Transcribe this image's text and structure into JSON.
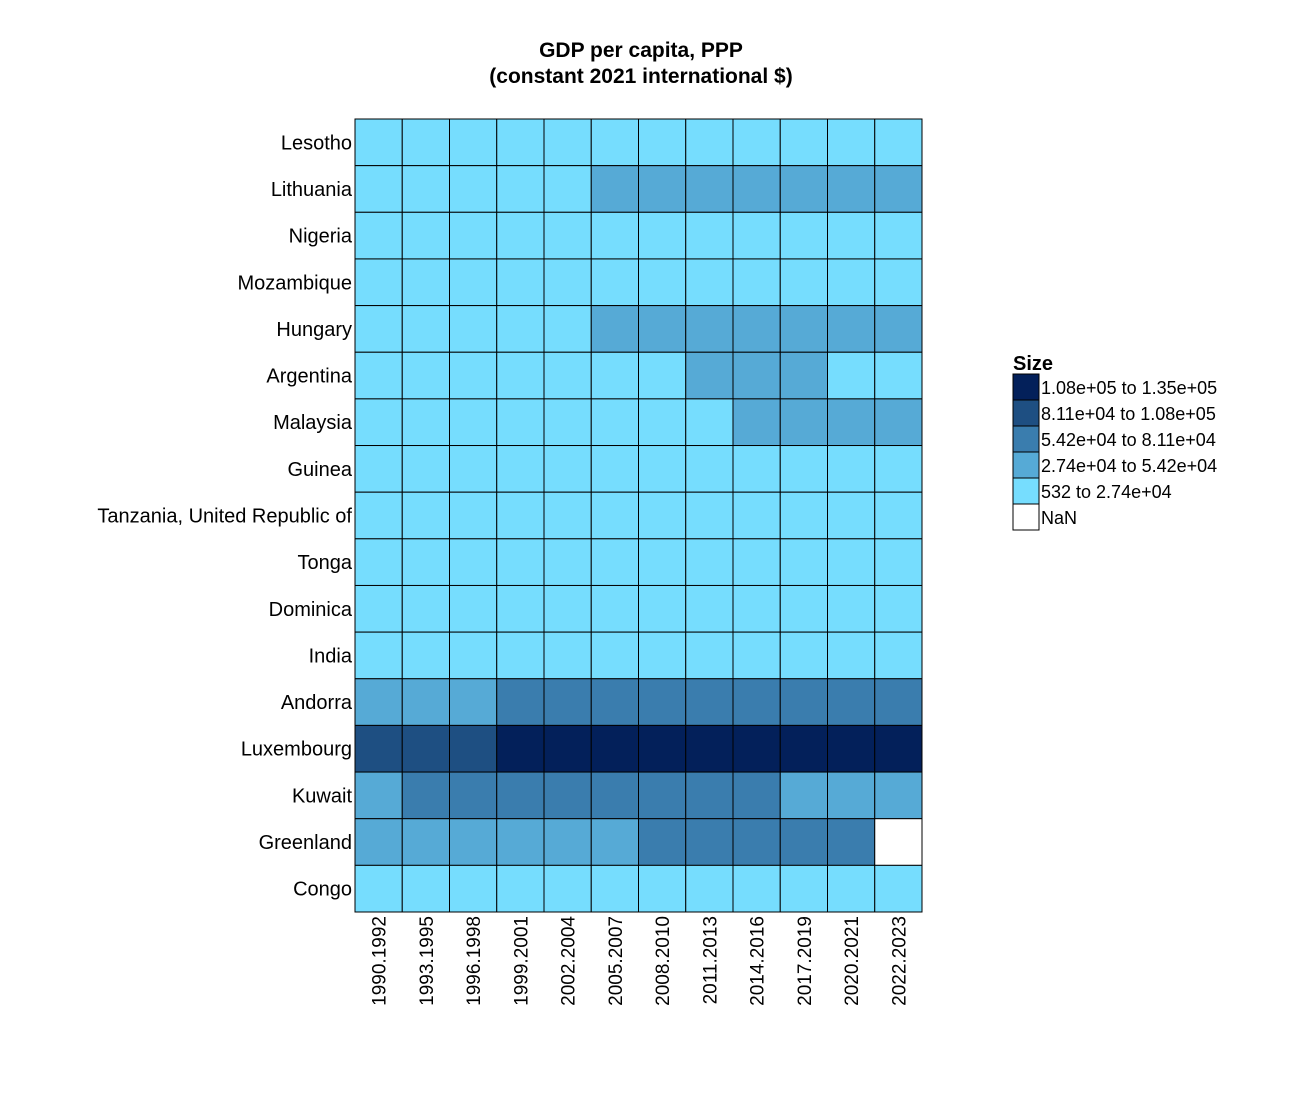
{
  "chart_data": {
    "type": "heatmap",
    "title_line1": "GDP per capita, PPP",
    "title_line2": "(constant 2021 international $)",
    "xlabel": "",
    "ylabel": "",
    "columns": [
      "1990.1992",
      "1993.1995",
      "1996.1998",
      "1999.2001",
      "2002.2004",
      "2005.2007",
      "2008.2010",
      "2011.2013",
      "2014.2016",
      "2017.2019",
      "2020.2021",
      "2022.2023"
    ],
    "rows": [
      "Lesotho",
      "Lithuania",
      "Nigeria",
      "Mozambique",
      "Hungary",
      "Argentina",
      "Malaysia",
      "Guinea",
      "Tanzania, United Republic of",
      "Tonga",
      "Dominica",
      "India",
      "Andorra",
      "Luxembourg",
      "Kuwait",
      "Greenland",
      "Congo"
    ],
    "bins": [
      [
        0,
        0,
        0,
        0,
        0,
        0,
        0,
        0,
        0,
        0,
        0,
        0
      ],
      [
        0,
        0,
        0,
        0,
        0,
        1,
        1,
        1,
        1,
        1,
        1,
        1
      ],
      [
        0,
        0,
        0,
        0,
        0,
        0,
        0,
        0,
        0,
        0,
        0,
        0
      ],
      [
        0,
        0,
        0,
        0,
        0,
        0,
        0,
        0,
        0,
        0,
        0,
        0
      ],
      [
        0,
        0,
        0,
        0,
        0,
        1,
        1,
        1,
        1,
        1,
        1,
        1
      ],
      [
        0,
        0,
        0,
        0,
        0,
        0,
        0,
        1,
        1,
        1,
        0,
        0
      ],
      [
        0,
        0,
        0,
        0,
        0,
        0,
        0,
        0,
        1,
        1,
        1,
        1
      ],
      [
        0,
        0,
        0,
        0,
        0,
        0,
        0,
        0,
        0,
        0,
        0,
        0
      ],
      [
        0,
        0,
        0,
        0,
        0,
        0,
        0,
        0,
        0,
        0,
        0,
        0
      ],
      [
        0,
        0,
        0,
        0,
        0,
        0,
        0,
        0,
        0,
        0,
        0,
        0
      ],
      [
        0,
        0,
        0,
        0,
        0,
        0,
        0,
        0,
        0,
        0,
        0,
        0
      ],
      [
        0,
        0,
        0,
        0,
        0,
        0,
        0,
        0,
        0,
        0,
        0,
        0
      ],
      [
        1,
        1,
        1,
        2,
        2,
        2,
        2,
        2,
        2,
        2,
        2,
        2
      ],
      [
        3,
        3,
        3,
        4,
        4,
        4,
        4,
        4,
        4,
        4,
        4,
        4
      ],
      [
        1,
        2,
        2,
        2,
        2,
        2,
        2,
        2,
        2,
        1,
        1,
        1
      ],
      [
        1,
        1,
        1,
        1,
        1,
        1,
        2,
        2,
        2,
        2,
        2,
        -1
      ],
      [
        0,
        0,
        0,
        0,
        0,
        0,
        0,
        0,
        0,
        0,
        0,
        0
      ]
    ],
    "legend": {
      "title": "Size",
      "position": "right",
      "items": [
        {
          "label": "1.08e+05 to 1.35e+05",
          "color": "#03205A"
        },
        {
          "label": "8.11e+04 to 1.08e+05",
          "color": "#1E4F82"
        },
        {
          "label": "5.42e+04 to 8.11e+04",
          "color": "#3A7DAE"
        },
        {
          "label": "2.74e+04 to 5.42e+04",
          "color": "#56AAD6"
        },
        {
          "label": "532 to 2.74e+04",
          "color": "#76DDFE"
        },
        {
          "label": "NaN",
          "color": "#FFFFFF"
        }
      ]
    },
    "bin_colors": [
      "#76DDFE",
      "#56AAD6",
      "#3A7DAE",
      "#1E4F82",
      "#03205A"
    ],
    "nan_color": "#FFFFFF",
    "grid": false
  }
}
